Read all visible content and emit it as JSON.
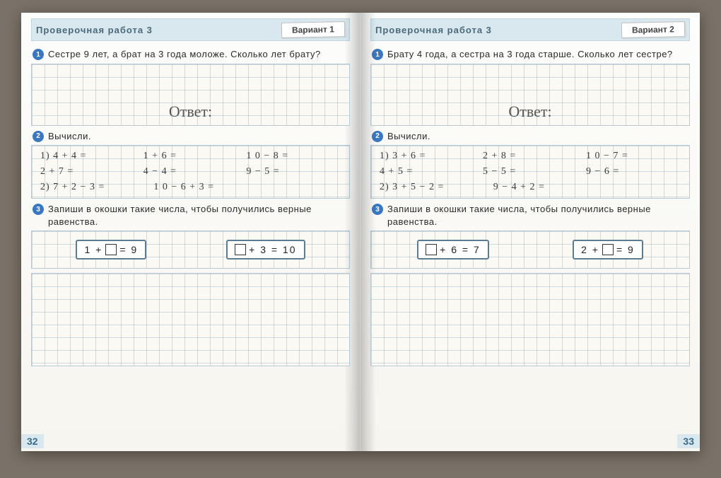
{
  "colors": {
    "header_bg": "#d9e8ef",
    "header_text": "#4a6a7a",
    "badge_bg": "#3a77c2",
    "grid_line": "rgba(120,160,190,0.35)",
    "paper_bg": "#faf9f4",
    "eq_border": "#5a7d94"
  },
  "left": {
    "header": "Проверочная работа 3",
    "variant": "Вариант 1",
    "page_num": "32",
    "t1": {
      "num": "1",
      "text": "Сестре 9 лет, а брат на 3 года моложе. Сколько лет брату?",
      "answer_label": "Ответ:"
    },
    "t2": {
      "num": "2",
      "title": "Вычисли.",
      "rows": [
        [
          "1) 4 + 4 =",
          "1 + 6 =",
          "1 0 − 8 ="
        ],
        [
          "   2 + 7 =",
          "4 − 4 =",
          "9 − 5 ="
        ],
        [
          "2) 7 + 2 − 3 =",
          "1 0 − 6 + 3 =",
          ""
        ]
      ]
    },
    "t3": {
      "num": "3",
      "text": "Запиши в окошки такие числа, чтобы получились верные равенства.",
      "eq1_pre": "1 +",
      "eq1_post": "= 9",
      "eq2_post": "+ 3 = 10"
    }
  },
  "right": {
    "header": "Проверочная работа 3",
    "variant": "Вариант 2",
    "page_num": "33",
    "t1": {
      "num": "1",
      "text": "Брату 4 года, а сестра на 3 года старше. Сколько лет сестре?",
      "answer_label": "Ответ:"
    },
    "t2": {
      "num": "2",
      "title": "Вычисли.",
      "rows": [
        [
          "1) 3 + 6 =",
          "2 + 8 =",
          "1 0 − 7 ="
        ],
        [
          "   4 + 5 =",
          "5 − 5 =",
          "9 − 6 ="
        ],
        [
          "2) 3 + 5 − 2 =",
          "9 − 4 + 2 =",
          ""
        ]
      ]
    },
    "t3": {
      "num": "3",
      "text": "Запиши в окошки такие числа, чтобы получились верные равенства.",
      "eq1_post": "+ 6 = 7",
      "eq2_pre": "2 +",
      "eq2_post": "= 9"
    }
  }
}
